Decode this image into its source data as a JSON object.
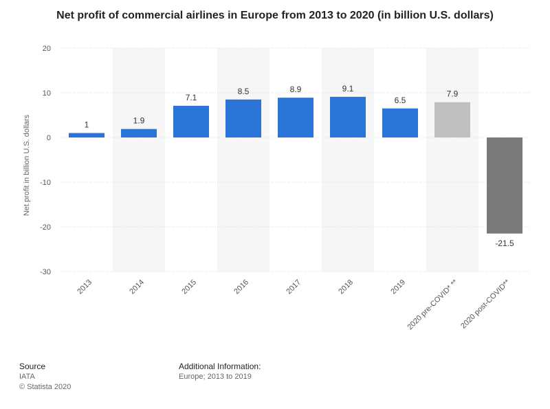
{
  "chart_data": {
    "type": "bar",
    "title": "Net profit of commercial airlines in Europe from 2013 to 2020 (in billion U.S. dollars)",
    "ylabel": "Net profit in billion U.S. dollars",
    "xlabel": "",
    "categories": [
      "2013",
      "2014",
      "2015",
      "2016",
      "2017",
      "2018",
      "2019",
      "2020 pre-COVID* **",
      "2020 post-COVID**"
    ],
    "values": [
      1,
      1.9,
      7.1,
      8.5,
      8.9,
      9.1,
      6.5,
      7.9,
      -21.5
    ],
    "value_labels": [
      "1",
      "1.9",
      "7.1",
      "8.5",
      "8.9",
      "9.1",
      "6.5",
      "7.9",
      "-21.5"
    ],
    "bar_colors": [
      "#2b74d8",
      "#2b74d8",
      "#2b74d8",
      "#2b74d8",
      "#2b74d8",
      "#2b74d8",
      "#2b74d8",
      "#c0c0c0",
      "#7a7a7a"
    ],
    "ylim": [
      -30,
      20
    ],
    "yticks": [
      "20",
      "10",
      "0",
      "-10",
      "-20",
      "-30"
    ],
    "grid": true,
    "alternating_column_shading": true
  },
  "footer": {
    "source_label": "Source",
    "source_value": "IATA",
    "copyright": "© Statista 2020",
    "additional_label": "Additional Information:",
    "additional_value": "Europe; 2013 to 2019"
  }
}
